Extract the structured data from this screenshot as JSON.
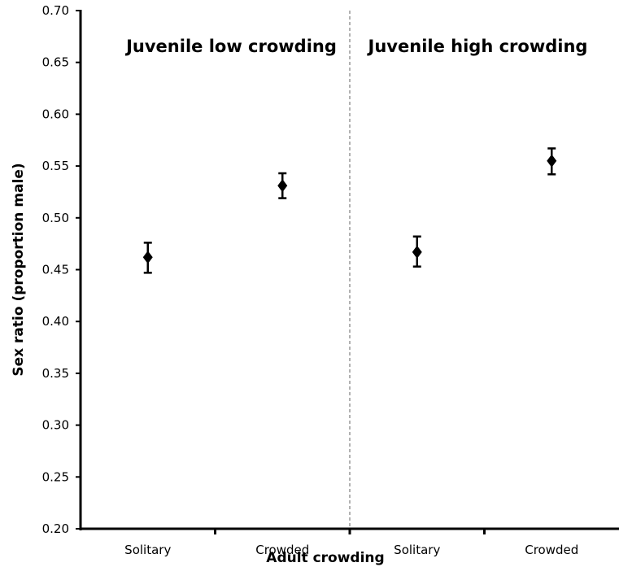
{
  "chart_data": {
    "type": "scatter",
    "title": "",
    "xlabel": "Adult crowding",
    "ylabel": "Sex ratio (proportion male)",
    "ylim": [
      0.2,
      0.7
    ],
    "yticks": [
      "0.20",
      "0.25",
      "0.30",
      "0.35",
      "0.40",
      "0.45",
      "0.50",
      "0.55",
      "0.60",
      "0.65",
      "0.70"
    ],
    "categories": [
      "Solitary",
      "Crowded",
      "Solitary",
      "Crowded"
    ],
    "panels": [
      "Juvenile low crowding",
      "Juvenile high crowding"
    ],
    "points": [
      {
        "panel": "Juvenile low crowding",
        "x": "Solitary",
        "y": 0.462,
        "err_low": 0.447,
        "err_high": 0.476
      },
      {
        "panel": "Juvenile low crowding",
        "x": "Crowded",
        "y": 0.531,
        "err_low": 0.519,
        "err_high": 0.543
      },
      {
        "panel": "Juvenile high crowding",
        "x": "Solitary",
        "y": 0.467,
        "err_low": 0.453,
        "err_high": 0.482
      },
      {
        "panel": "Juvenile high crowding",
        "x": "Crowded",
        "y": 0.555,
        "err_low": 0.542,
        "err_high": 0.567
      }
    ],
    "marker": "diamond",
    "grid": false,
    "panel_divider": "dashed vertical line"
  }
}
